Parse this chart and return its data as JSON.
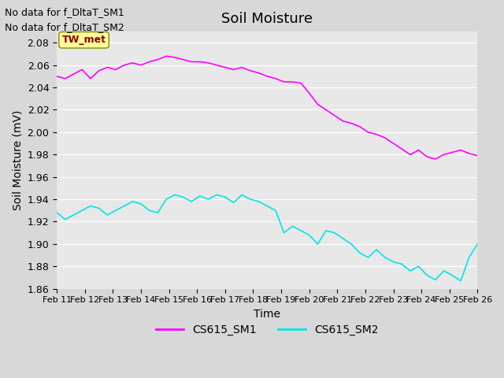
{
  "title": "Soil Moisture",
  "xlabel": "Time",
  "ylabel": "Soil Moisture (mV)",
  "ylim": [
    1.86,
    2.09
  ],
  "xlim": [
    0,
    15
  ],
  "xtick_labels": [
    "Feb 11",
    "Feb 12",
    "Feb 13",
    "Feb 14",
    "Feb 15",
    "Feb 16",
    "Feb 17",
    "Feb 18",
    "Feb 19",
    "Feb 20",
    "Feb 21",
    "Feb 22",
    "Feb 23",
    "Feb 24",
    "Feb 25",
    "Feb 26"
  ],
  "ytick_values": [
    1.86,
    1.88,
    1.9,
    1.92,
    1.94,
    1.96,
    1.98,
    2.0,
    2.02,
    2.04,
    2.06,
    2.08
  ],
  "color_sm1": "#ff00ff",
  "color_sm2": "#00e5e5",
  "bg_color": "#e8e8e8",
  "plot_bg": "#e8e8e8",
  "no_data_text1": "No data for f_DltaT_SM1",
  "no_data_text2": "No data for f_DltaT_SM2",
  "tw_met_label": "TW_met",
  "legend_labels": [
    "CS615_SM1",
    "CS615_SM2"
  ],
  "sm1_x": [
    0,
    0.3,
    0.6,
    0.9,
    1.2,
    1.5,
    1.8,
    2.1,
    2.4,
    2.7,
    3.0,
    3.3,
    3.6,
    3.9,
    4.2,
    4.5,
    4.8,
    5.1,
    5.4,
    5.7,
    6.0,
    6.3,
    6.6,
    6.9,
    7.2,
    7.5,
    7.8,
    8.1,
    8.4,
    8.7,
    9.0,
    9.3,
    9.6,
    9.9,
    10.2,
    10.5,
    10.8,
    11.1,
    11.4,
    11.7,
    12.0,
    12.3,
    12.6,
    12.9,
    13.2,
    13.5,
    13.8,
    14.1,
    14.4,
    14.7,
    15.0
  ],
  "sm1_y": [
    2.05,
    2.048,
    2.052,
    2.056,
    2.048,
    2.055,
    2.058,
    2.056,
    2.06,
    2.062,
    2.06,
    2.063,
    2.065,
    2.068,
    2.067,
    2.065,
    2.063,
    2.063,
    2.062,
    2.06,
    2.058,
    2.056,
    2.058,
    2.055,
    2.053,
    2.05,
    2.048,
    2.045,
    2.045,
    2.044,
    2.035,
    2.025,
    2.02,
    2.015,
    2.01,
    2.008,
    2.005,
    2.0,
    1.998,
    1.995,
    1.99,
    1.985,
    1.98,
    1.984,
    1.978,
    1.976,
    1.98,
    1.982,
    1.984,
    1.981,
    1.979
  ],
  "sm2_x": [
    0,
    0.3,
    0.6,
    0.9,
    1.2,
    1.5,
    1.8,
    2.1,
    2.4,
    2.7,
    3.0,
    3.3,
    3.6,
    3.9,
    4.2,
    4.5,
    4.8,
    5.1,
    5.4,
    5.7,
    6.0,
    6.3,
    6.6,
    6.9,
    7.2,
    7.5,
    7.8,
    8.1,
    8.4,
    8.7,
    9.0,
    9.3,
    9.6,
    9.9,
    10.2,
    10.5,
    10.8,
    11.1,
    11.4,
    11.7,
    12.0,
    12.3,
    12.6,
    12.9,
    13.2,
    13.5,
    13.8,
    14.1,
    14.4,
    14.7,
    15.0
  ],
  "sm2_y": [
    1.928,
    1.922,
    1.926,
    1.93,
    1.934,
    1.932,
    1.926,
    1.93,
    1.934,
    1.938,
    1.936,
    1.93,
    1.928,
    1.94,
    1.944,
    1.942,
    1.938,
    1.943,
    1.94,
    1.944,
    1.942,
    1.937,
    1.944,
    1.94,
    1.938,
    1.934,
    1.93,
    1.91,
    1.916,
    1.912,
    1.908,
    1.9,
    1.912,
    1.91,
    1.905,
    1.9,
    1.892,
    1.888,
    1.895,
    1.888,
    1.884,
    1.882,
    1.876,
    1.88,
    1.872,
    1.868,
    1.876,
    1.872,
    1.867,
    1.888,
    1.9
  ]
}
